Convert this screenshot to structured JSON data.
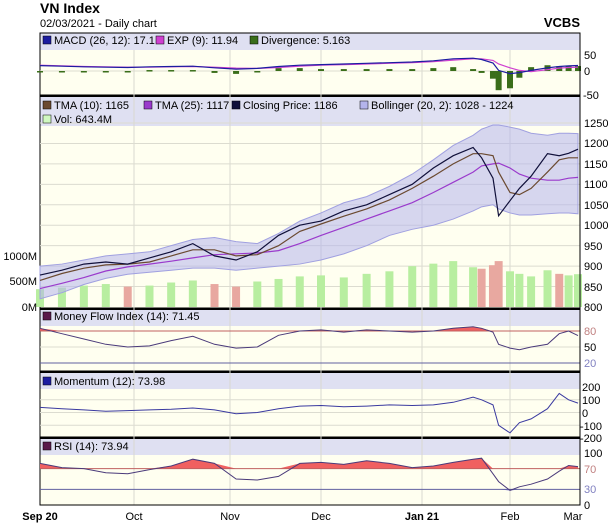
{
  "header": {
    "title": "VN Index",
    "subtitle": "02/03/2021 - Daily chart",
    "brand": "VCBS"
  },
  "legends": {
    "macd": "MACD (26, 12): 17.1",
    "exp": "EXP (9): 11.94",
    "divergence": "Divergence: 5.163",
    "tma10": "TMA (10): 1165",
    "tma25": "TMA (25): 1117",
    "close": "Closing Price: 1186",
    "bollinger": "Bollinger (20, 2): 1028 - 1224",
    "vol": "Vol: 643.4M",
    "mfi": "Money Flow Index (14): 71.45",
    "momentum": "Momentum (12): 73.98",
    "rsi": "RSI (14): 73.94"
  },
  "x_labels": [
    "Sep 20",
    "Oct",
    "Nov",
    "Dec",
    "Jan 21",
    "Feb",
    "Mar"
  ],
  "axes": {
    "macd": [
      "50",
      "0",
      "-50"
    ],
    "price": [
      "1250",
      "1200",
      "1150",
      "1100",
      "1050",
      "1000",
      "950",
      "900",
      "850",
      "800"
    ],
    "volume": [
      "1000M",
      "500M",
      "0M"
    ],
    "mfi": [
      "80",
      "50",
      "20"
    ],
    "momentum": [
      "200",
      "100",
      "0",
      "-100",
      "-200"
    ],
    "rsi": [
      "100",
      "70",
      "30",
      "0"
    ]
  },
  "colors": {
    "macd": "#1c1ca0",
    "exp": "#d040d0",
    "divergence": "#3a6e1a",
    "tma10": "#6b4a30",
    "tma25": "#9a3acc",
    "close": "#10103a",
    "bollinger": "#b4b4ec",
    "vol_up": "#b8eea0",
    "vol_down": "#e8a8a0",
    "panel_bg": "#fffff0",
    "legend_bg": "#dfe0f2",
    "overbought": "#f06060"
  },
  "chart_data": {
    "type": "line",
    "title": "VN Index",
    "dates": [
      "2020-09-01",
      "2020-09-08",
      "2020-09-15",
      "2020-09-22",
      "2020-09-29",
      "2020-10-06",
      "2020-10-13",
      "2020-10-20",
      "2020-10-27",
      "2020-11-03",
      "2020-11-10",
      "2020-11-17",
      "2020-11-24",
      "2020-12-01",
      "2020-12-08",
      "2020-12-15",
      "2020-12-22",
      "2020-12-29",
      "2021-01-05",
      "2021-01-12",
      "2021-01-19",
      "2021-01-22",
      "2021-01-26",
      "2021-01-28",
      "2021-02-01",
      "2021-02-05",
      "2021-02-10",
      "2021-02-17",
      "2021-02-22",
      "2021-02-26",
      "2021-03-02"
    ],
    "price_ylim": [
      800,
      1250
    ],
    "volume_ylim_millions": [
      0,
      1000
    ],
    "series": [
      {
        "name": "Closing Price",
        "panel": "price",
        "values": [
          878,
          890,
          905,
          910,
          905,
          920,
          935,
          955,
          925,
          915,
          935,
          975,
          1000,
          1010,
          1035,
          1050,
          1075,
          1100,
          1140,
          1170,
          1190,
          1165,
          1115,
          1023,
          1060,
          1090,
          1120,
          1175,
          1170,
          1176,
          1186
        ]
      },
      {
        "name": "TMA (10)",
        "panel": "price",
        "values": [
          865,
          882,
          895,
          903,
          905,
          910,
          925,
          940,
          940,
          925,
          928,
          950,
          985,
          1003,
          1022,
          1040,
          1062,
          1090,
          1120,
          1150,
          1175,
          1175,
          1170,
          1130,
          1080,
          1075,
          1090,
          1130,
          1160,
          1165,
          1165
        ]
      },
      {
        "name": "TMA (25)",
        "panel": "price",
        "values": [
          845,
          858,
          872,
          888,
          898,
          905,
          912,
          920,
          928,
          930,
          932,
          938,
          955,
          975,
          995,
          1015,
          1035,
          1055,
          1080,
          1105,
          1130,
          1145,
          1150,
          1152,
          1140,
          1125,
          1115,
          1110,
          1110,
          1115,
          1117
        ]
      },
      {
        "name": "Bollinger upper",
        "panel": "price",
        "values": [
          900,
          905,
          915,
          925,
          930,
          935,
          950,
          965,
          970,
          960,
          955,
          980,
          1010,
          1030,
          1055,
          1070,
          1095,
          1125,
          1160,
          1195,
          1220,
          1235,
          1245,
          1245,
          1240,
          1235,
          1225,
          1220,
          1225,
          1225,
          1224
        ]
      },
      {
        "name": "Bollinger lower",
        "panel": "price",
        "values": [
          820,
          835,
          855,
          870,
          880,
          885,
          890,
          895,
          895,
          890,
          895,
          900,
          905,
          915,
          930,
          950,
          975,
          990,
          1000,
          1015,
          1035,
          1045,
          1050,
          1040,
          1030,
          1025,
          1025,
          1028,
          1030,
          1030,
          1028
        ]
      },
      {
        "name": "Vol",
        "panel": "volume",
        "values": [
          350,
          380,
          420,
          450,
          400,
          420,
          480,
          520,
          450,
          400,
          500,
          550,
          600,
          620,
          580,
          650,
          700,
          800,
          850,
          900,
          780,
          750,
          820,
          900,
          700,
          650,
          600,
          720,
          650,
          620,
          643.4
        ]
      },
      {
        "name": "MACD (26, 12)",
        "panel": "macd",
        "ylim": [
          -50,
          50
        ],
        "values": [
          17,
          15,
          13,
          12,
          11,
          13,
          14,
          15,
          10,
          6,
          8,
          14,
          18,
          20,
          22,
          24,
          26,
          28,
          32,
          38,
          40,
          36,
          25,
          2,
          -8,
          -5,
          2,
          10,
          14,
          16,
          17.1
        ]
      },
      {
        "name": "EXP (9)",
        "panel": "macd",
        "values": [
          18,
          16,
          14,
          13,
          12,
          12,
          13,
          14,
          12,
          9,
          8,
          11,
          15,
          18,
          20,
          22,
          24,
          26,
          29,
          34,
          38,
          38,
          33,
          22,
          10,
          2,
          -2,
          4,
          9,
          11,
          11.94
        ]
      },
      {
        "name": "Money Flow Index (14)",
        "panel": "mfi",
        "ylim": [
          0,
          100
        ],
        "bands": [
          20,
          80
        ],
        "values": [
          85,
          75,
          65,
          55,
          50,
          52,
          62,
          70,
          55,
          48,
          50,
          72,
          80,
          82,
          78,
          82,
          80,
          78,
          80,
          85,
          88,
          85,
          78,
          55,
          48,
          45,
          50,
          55,
          75,
          80,
          71.45
        ]
      },
      {
        "name": "Momentum (12)",
        "panel": "momentum",
        "ylim": [
          -200,
          200
        ],
        "values": [
          40,
          30,
          20,
          10,
          15,
          20,
          25,
          35,
          20,
          -10,
          0,
          30,
          50,
          55,
          45,
          50,
          60,
          55,
          60,
          80,
          120,
          100,
          60,
          -100,
          -160,
          -80,
          -50,
          30,
          150,
          100,
          73.98
        ]
      },
      {
        "name": "RSI (14)",
        "panel": "rsi",
        "ylim": [
          0,
          100
        ],
        "bands": [
          30,
          70
        ],
        "values": [
          80,
          72,
          70,
          62,
          60,
          68,
          75,
          88,
          80,
          50,
          48,
          55,
          80,
          82,
          78,
          85,
          80,
          72,
          75,
          82,
          88,
          90,
          60,
          45,
          28,
          35,
          40,
          50,
          65,
          76,
          73.94
        ]
      }
    ]
  }
}
